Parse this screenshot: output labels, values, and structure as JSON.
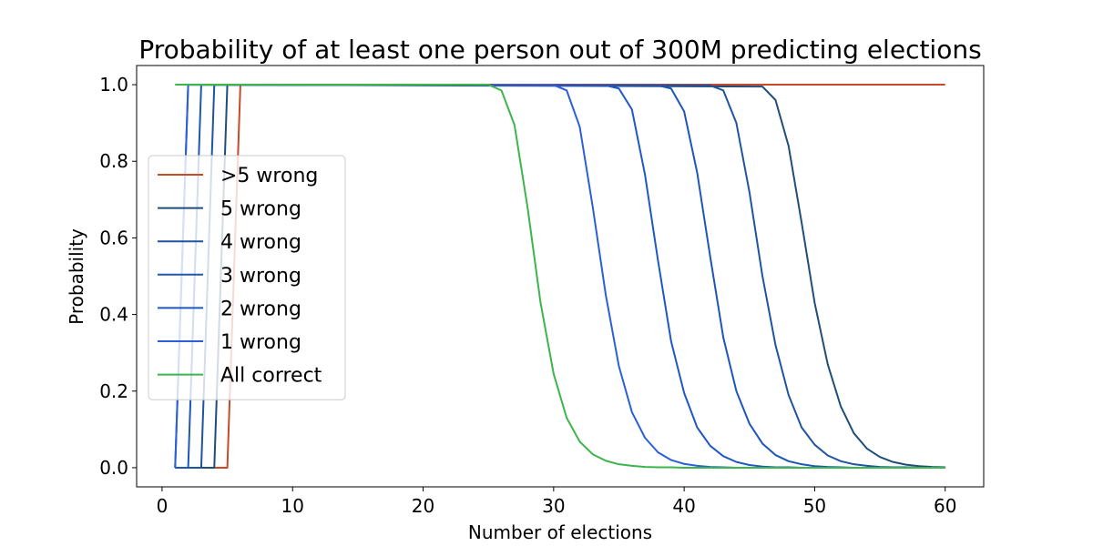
{
  "chart_data": {
    "type": "line",
    "title": "Probability of at least one person out of 300M predicting elections",
    "xlabel": "Number of elections",
    "ylabel": "Probability",
    "xlim": [
      -1.95,
      62.95
    ],
    "ylim": [
      -0.05,
      1.05
    ],
    "xticks": [
      0,
      10,
      20,
      30,
      40,
      50,
      60
    ],
    "yticks": [
      0.0,
      0.2,
      0.4,
      0.6,
      0.8,
      1.0
    ],
    "xtick_labels": [
      "0",
      "10",
      "20",
      "30",
      "40",
      "50",
      "60"
    ],
    "ytick_labels": [
      "0.0",
      "0.2",
      "0.4",
      "0.6",
      "0.8",
      "1.0"
    ],
    "grid": false,
    "legend_position": "center-left",
    "series": [
      {
        "name": ">5 wrong",
        "color": "#c9482a",
        "x": [
          1,
          5,
          6,
          60
        ],
        "y": [
          0,
          0,
          1,
          1
        ]
      },
      {
        "name": "5 wrong",
        "color": "#1f4e79",
        "x": [
          1,
          4,
          5,
          46,
          47,
          48,
          49,
          50,
          51,
          52,
          53,
          54,
          55,
          56,
          57,
          58,
          59,
          60
        ],
        "y": [
          0,
          0,
          1,
          0.995,
          0.96,
          0.84,
          0.64,
          0.43,
          0.27,
          0.16,
          0.09,
          0.05,
          0.028,
          0.015,
          0.008,
          0.004,
          0.002,
          0.001
        ]
      },
      {
        "name": "4 wrong",
        "color": "#1e54a0",
        "x": [
          1,
          3,
          4,
          42,
          43,
          44,
          45,
          46,
          47,
          48,
          49,
          50,
          51,
          52,
          53,
          54,
          55,
          56,
          57,
          58,
          59,
          60
        ],
        "y": [
          0,
          0,
          1,
          0.998,
          0.985,
          0.9,
          0.72,
          0.5,
          0.32,
          0.19,
          0.105,
          0.06,
          0.032,
          0.017,
          0.009,
          0.005,
          0.002,
          0.001,
          0.001,
          0,
          0,
          0
        ]
      },
      {
        "name": "3 wrong",
        "color": "#1d56b8",
        "x": [
          1,
          2,
          3,
          38,
          39,
          40,
          41,
          42,
          43,
          44,
          45,
          46,
          47,
          48,
          49,
          50,
          51,
          52,
          53,
          54,
          55,
          56,
          57,
          58,
          59,
          60
        ],
        "y": [
          0,
          0,
          1,
          0.998,
          0.99,
          0.93,
          0.77,
          0.55,
          0.34,
          0.2,
          0.115,
          0.063,
          0.033,
          0.017,
          0.009,
          0.004,
          0.002,
          0.001,
          0,
          0,
          0,
          0,
          0,
          0,
          0,
          0
        ]
      },
      {
        "name": "2 wrong",
        "color": "#1f57c4",
        "x": [
          1,
          2,
          34,
          35,
          36,
          37,
          38,
          39,
          40,
          41,
          42,
          43,
          44,
          45,
          46,
          47,
          48,
          49,
          50,
          51,
          52,
          53,
          54,
          55,
          56,
          57,
          58,
          59,
          60
        ],
        "y": [
          0,
          1,
          0.998,
          0.99,
          0.935,
          0.765,
          0.54,
          0.33,
          0.195,
          0.105,
          0.057,
          0.03,
          0.015,
          0.007,
          0.003,
          0.001,
          0.001,
          0,
          0,
          0,
          0,
          0,
          0,
          0,
          0,
          0,
          0,
          0,
          0
        ]
      },
      {
        "name": "1 wrong",
        "color": "#2b5fd9",
        "x": [
          1,
          2,
          30,
          31,
          32,
          33,
          34,
          35,
          36,
          37,
          38,
          39,
          40,
          41,
          42,
          43,
          44,
          45,
          46,
          47,
          48,
          49,
          50,
          51,
          52,
          53,
          54,
          55,
          56,
          57,
          58,
          59,
          60
        ],
        "y": [
          0,
          1,
          0.999,
          0.985,
          0.89,
          0.68,
          0.45,
          0.265,
          0.145,
          0.078,
          0.04,
          0.02,
          0.01,
          0.005,
          0.002,
          0.001,
          0,
          0,
          0,
          0,
          0,
          0,
          0,
          0,
          0,
          0,
          0,
          0,
          0,
          0,
          0,
          0,
          0
        ]
      },
      {
        "name": "All correct",
        "color": "#3cb54a",
        "x": [
          1,
          25,
          26,
          27,
          28,
          29,
          30,
          31,
          32,
          33,
          34,
          35,
          36,
          37,
          38,
          39,
          40,
          42,
          45,
          50,
          60
        ],
        "y": [
          1,
          1,
          0.985,
          0.895,
          0.68,
          0.43,
          0.245,
          0.13,
          0.068,
          0.035,
          0.018,
          0.009,
          0.005,
          0.002,
          0.001,
          0.001,
          0,
          0,
          0,
          0,
          0
        ]
      }
    ]
  }
}
